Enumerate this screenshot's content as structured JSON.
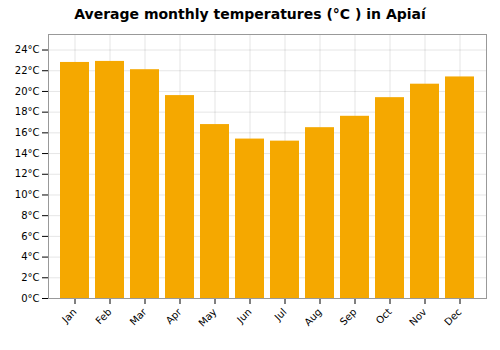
{
  "chart_data": {
    "type": "bar",
    "title": "Average monthly temperatures (°C ) in Apiaí",
    "categories": [
      "Jan",
      "Feb",
      "Mar",
      "Apr",
      "May",
      "Jun",
      "Jul",
      "Aug",
      "Sep",
      "Oct",
      "Nov",
      "Dec"
    ],
    "values": [
      22.8,
      22.9,
      22.1,
      19.6,
      16.8,
      15.4,
      15.2,
      16.5,
      17.6,
      19.4,
      20.7,
      21.4
    ],
    "color": "#F5A800",
    "ylim": [
      0,
      25.5
    ],
    "yticks": [
      {
        "value": 0,
        "label": "0°C"
      },
      {
        "value": 2,
        "label": "2°C"
      },
      {
        "value": 4,
        "label": "4°C"
      },
      {
        "value": 6,
        "label": "6°C"
      },
      {
        "value": 8,
        "label": "8°C"
      },
      {
        "value": 10,
        "label": "10°C"
      },
      {
        "value": 12,
        "label": "12°C"
      },
      {
        "value": 14,
        "label": "14°C"
      },
      {
        "value": 16,
        "label": "16°C"
      },
      {
        "value": 18,
        "label": "18°C"
      },
      {
        "value": 20,
        "label": "20°C"
      },
      {
        "value": 22,
        "label": "22°C"
      },
      {
        "value": 24,
        "label": "24°C"
      }
    ],
    "grid": true
  }
}
